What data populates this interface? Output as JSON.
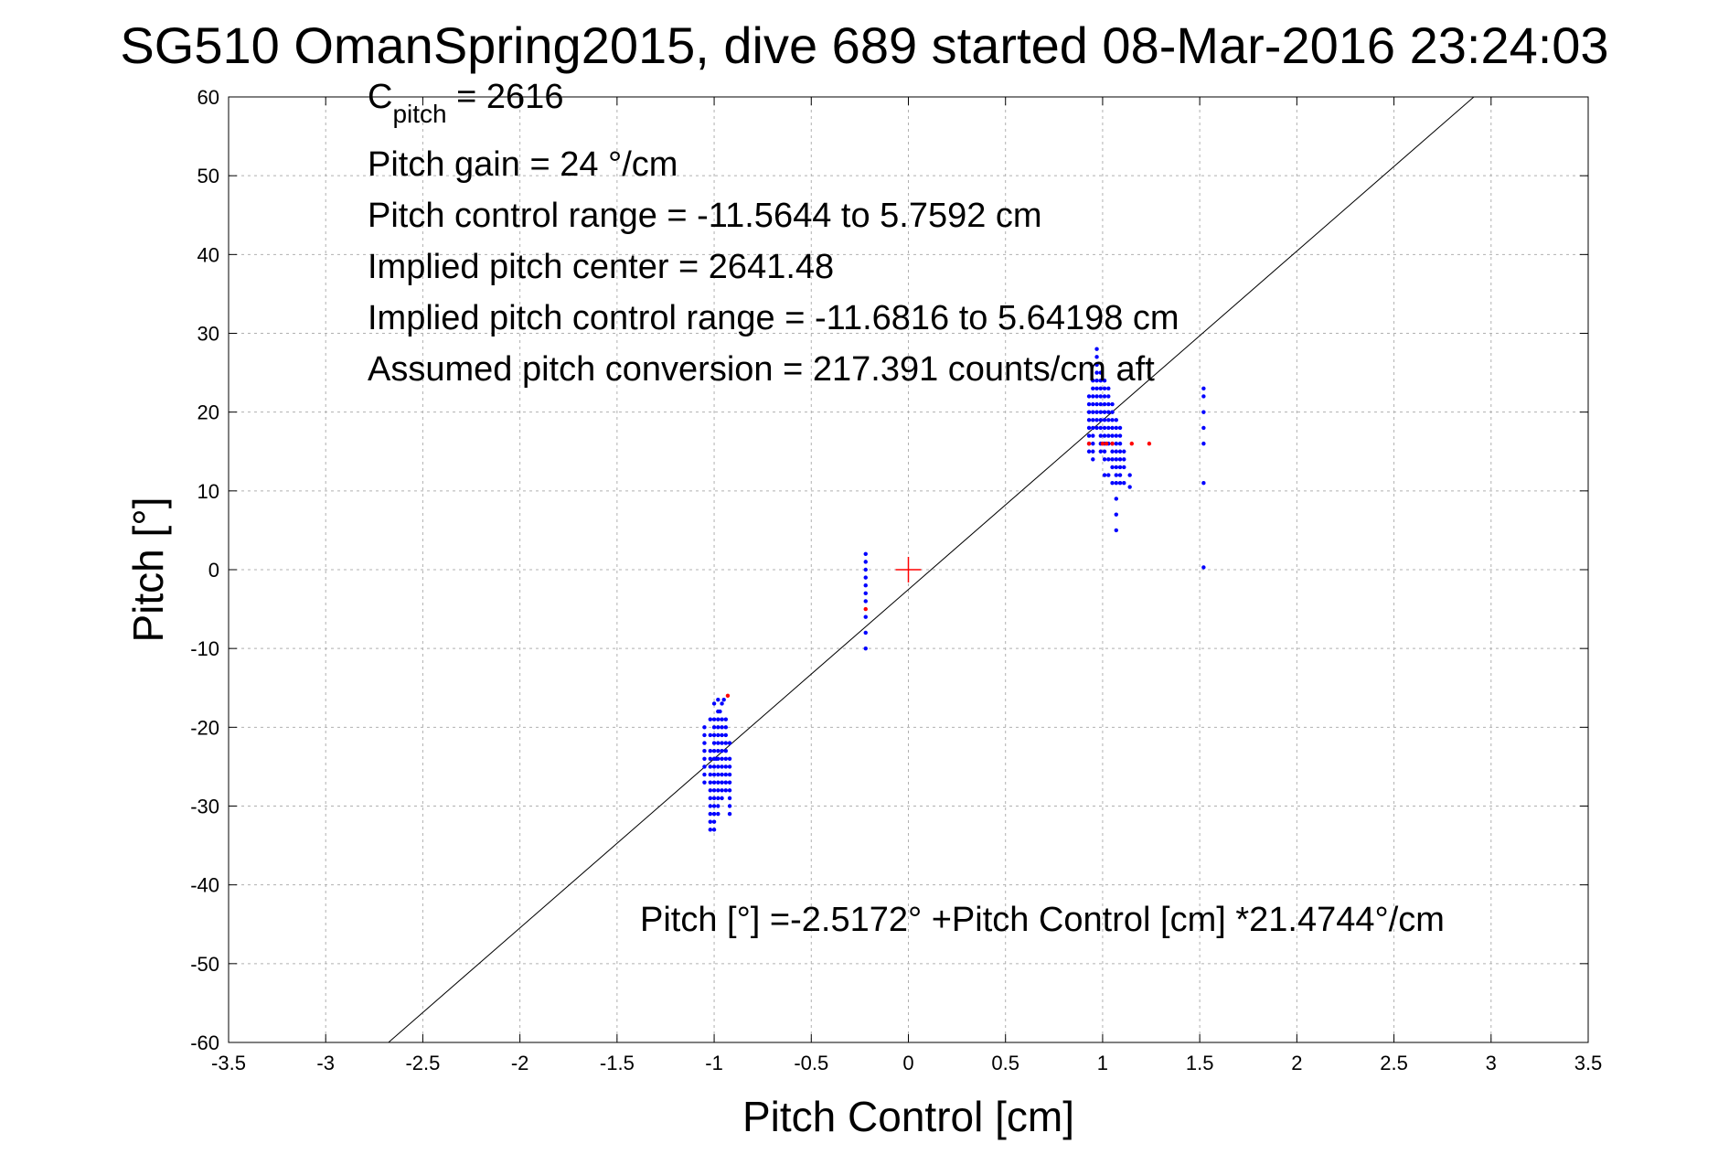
{
  "chart_data": {
    "type": "scatter",
    "title": "SG510 OmanSpring2015, dive 689 started 08-Mar-2016 23:24:03",
    "xlabel": "Pitch Control [cm]",
    "ylabel": "Pitch [°]",
    "xlim": [
      -3.5,
      3.5
    ],
    "ylim": [
      -60,
      60
    ],
    "xticks": [
      -3.5,
      -3,
      -2.5,
      -2,
      -1.5,
      -1,
      -0.5,
      0,
      0.5,
      1,
      1.5,
      2,
      2.5,
      3,
      3.5
    ],
    "xtick_labels": [
      "-3.5",
      "-3",
      "-2.5",
      "-2",
      "-1.5",
      "-1",
      "-0.5",
      "0",
      "0.5",
      "1",
      "1.5",
      "2",
      "2.5",
      "3",
      "3.5"
    ],
    "yticks": [
      60,
      50,
      40,
      30,
      20,
      10,
      0,
      -10,
      -20,
      -30,
      -40,
      -50,
      -60
    ],
    "ytick_labels": [
      "60",
      "50",
      "40",
      "30",
      "20",
      "10",
      "0",
      "-10",
      "-20",
      "-30",
      "-40",
      "-50",
      "-60"
    ],
    "grid": true,
    "fit_line": {
      "intercept": -2.5172,
      "slope": 21.4744
    },
    "center_marker": {
      "x": 0,
      "y": 0,
      "color": "#ff0000"
    },
    "annotations": {
      "c_pitch_main": "C",
      "c_pitch_sub": "pitch",
      "c_pitch_value": " = 2616",
      "pitch_gain": "Pitch gain = 24 °/cm",
      "pitch_control_range": "Pitch control range = -11.5644 to 5.7592 cm",
      "implied_pitch_center": "Implied pitch center = 2641.48",
      "implied_pitch_control_range": "Implied pitch control range = -11.6816 to 5.64198 cm",
      "assumed_pitch_conversion": "Assumed pitch conversion = 217.391 counts/cm aft",
      "fit_equation": "Pitch [°] =-2.5172° +Pitch Control [cm] *21.4744°/cm"
    },
    "series": [
      {
        "color": "#0000ff",
        "x": [
          -1.02,
          -1.02,
          -1.02,
          -1.02,
          -1.02,
          -1.02,
          -1.02,
          -1.02,
          -1.02,
          -1.02,
          -1.02,
          -1.02,
          -1.02,
          -1.0,
          -1.0,
          -1.0,
          -1.0,
          -1.0,
          -1.0,
          -1.0,
          -1.0,
          -1.0,
          -1.0,
          -1.0,
          -1.0,
          -1.0,
          -1.0,
          -1.0,
          -1.0,
          -0.98,
          -0.98,
          -0.98,
          -0.98,
          -0.98,
          -0.98,
          -0.98,
          -0.98,
          -0.98,
          -0.98,
          -0.98,
          -0.98,
          -0.98,
          -0.98,
          -0.98,
          -0.96,
          -0.96,
          -0.96,
          -0.96,
          -0.96,
          -0.96,
          -0.96,
          -0.96,
          -0.96,
          -0.96,
          -0.96,
          -0.96,
          -0.94,
          -0.94,
          -0.94,
          -0.94,
          -0.94,
          -0.94,
          -0.94,
          -0.94,
          -0.94,
          -0.94,
          -0.92,
          -0.92,
          -0.92,
          -0.92,
          -0.92,
          -0.92,
          -0.92,
          -0.92,
          -0.92,
          -1.05,
          -1.05,
          -1.05,
          -1.05,
          -1.05,
          -1.05,
          -1.05,
          -1.05,
          -0.97,
          -0.95,
          -0.99,
          -0.22,
          -0.22,
          -0.22,
          -0.22,
          -0.22,
          -0.22,
          -0.22,
          -0.22,
          -0.22,
          -0.22,
          0.93,
          0.93,
          0.93,
          0.93,
          0.93,
          0.93,
          0.93,
          0.93,
          0.95,
          0.95,
          0.95,
          0.95,
          0.95,
          0.95,
          0.95,
          0.95,
          0.95,
          0.95,
          0.95,
          0.97,
          0.97,
          0.97,
          0.97,
          0.97,
          0.97,
          0.97,
          0.97,
          0.97,
          0.97,
          0.97,
          0.99,
          0.99,
          0.99,
          0.99,
          0.99,
          0.99,
          0.99,
          0.99,
          0.99,
          0.99,
          0.99,
          1.01,
          1.01,
          1.01,
          1.01,
          1.01,
          1.01,
          1.01,
          1.01,
          1.01,
          1.01,
          1.01,
          1.01,
          1.03,
          1.03,
          1.03,
          1.03,
          1.03,
          1.03,
          1.03,
          1.03,
          1.03,
          1.03,
          1.05,
          1.05,
          1.05,
          1.05,
          1.05,
          1.05,
          1.05,
          1.05,
          1.05,
          1.05,
          1.07,
          1.07,
          1.07,
          1.07,
          1.07,
          1.07,
          1.07,
          1.07,
          1.07,
          1.07,
          1.07,
          1.07,
          1.09,
          1.09,
          1.09,
          1.09,
          1.09,
          1.09,
          1.09,
          1.09,
          1.11,
          1.11,
          1.11,
          1.11,
          1.14,
          1.14,
          1.52,
          1.52,
          1.52,
          1.52,
          1.52,
          1.52,
          1.52
        ],
        "y": [
          -19,
          -21,
          -23,
          -25,
          -27,
          -28,
          -29,
          -30,
          -31,
          -32,
          -33,
          -26,
          -24,
          -17,
          -19,
          -20,
          -21,
          -22,
          -23,
          -24,
          -25,
          -26,
          -27,
          -28,
          -29,
          -30,
          -31,
          -33,
          -32,
          -16.5,
          -18,
          -19,
          -20,
          -21,
          -22,
          -23,
          -24,
          -25,
          -26,
          -27,
          -28,
          -29,
          -30,
          -31,
          -17,
          -19,
          -20,
          -21,
          -22,
          -23,
          -24,
          -25,
          -26,
          -27,
          -28,
          -29,
          -19,
          -20,
          -21,
          -22,
          -23,
          -24,
          -25,
          -26,
          -27,
          -28,
          -24,
          -25,
          -26,
          -27,
          -28,
          -29,
          -30,
          -31,
          -22,
          -20,
          -21,
          -22,
          -23,
          -24,
          -25,
          -26,
          -27,
          -18,
          -16.5,
          -24,
          2,
          1,
          0,
          -1,
          -2,
          -3,
          -4,
          -6,
          -8,
          -10,
          22,
          20,
          18,
          17,
          16,
          19,
          21,
          15,
          24,
          23,
          22,
          21,
          20,
          19,
          18,
          17,
          16,
          15,
          14,
          28,
          27,
          26,
          25,
          24,
          23,
          22,
          21,
          20,
          19,
          18,
          25,
          24,
          23,
          22,
          21,
          20,
          19,
          18,
          17,
          16,
          15,
          24,
          23,
          22,
          21,
          20,
          19,
          18,
          17,
          16,
          15,
          14,
          12,
          23,
          22,
          21,
          20,
          19,
          18,
          17,
          16,
          14,
          12,
          21,
          20,
          19,
          18,
          17,
          16,
          15,
          14,
          13,
          11,
          19,
          18,
          17,
          16,
          15,
          14,
          13,
          12,
          11,
          9,
          7,
          5,
          18,
          17,
          16,
          15,
          14,
          13,
          12,
          11,
          15,
          14,
          13,
          11,
          12,
          10.5,
          23,
          20,
          18,
          16,
          11,
          0.3,
          22
        ],
        "name": ""
      },
      {
        "color": "#ff0000",
        "x": [
          -0.93,
          -0.22,
          0.93,
          1.0,
          1.02,
          1.05,
          1.15,
          1.24
        ],
        "y": [
          -16,
          -5,
          16,
          16,
          16,
          16,
          16,
          16
        ],
        "name": ""
      }
    ]
  }
}
